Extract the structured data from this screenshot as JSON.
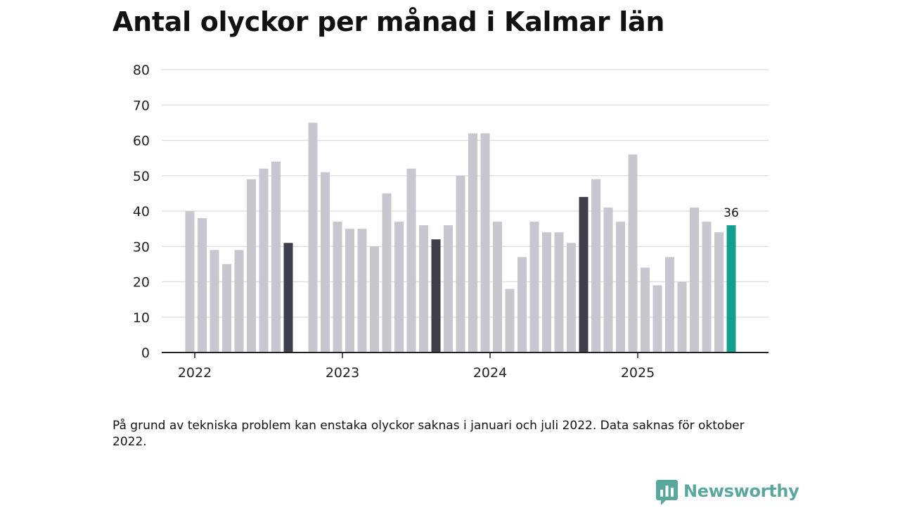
{
  "title": "Antal olyckor per månad i Kalmar län",
  "footnote": "På grund av tekniska problem kan enstaka olyckor saknas i januari och juli 2022. Data saknas för oktober 2022.",
  "brand": {
    "name": "Newsworthy",
    "icon": "newsworthy-logo-icon",
    "color": "#5aa89d"
  },
  "colors": {
    "bar": "#c8c7cf",
    "highlight": "#3f3e4b",
    "latest": "#139f8f",
    "grid": "#dcdcdc",
    "axis": "#222222"
  },
  "chart_data": {
    "type": "bar",
    "title": "Antal olyckor per månad i Kalmar län",
    "xlabel": "",
    "ylabel": "",
    "ylim": [
      0,
      80
    ],
    "yticks": [
      0,
      10,
      20,
      30,
      40,
      50,
      60,
      70,
      80
    ],
    "grid": true,
    "categories": [
      "2022-01",
      "2022-02",
      "2022-03",
      "2022-04",
      "2022-05",
      "2022-06",
      "2022-07",
      "2022-08",
      "2022-09",
      "2022-10",
      "2022-11",
      "2022-12",
      "2023-01",
      "2023-02",
      "2023-03",
      "2023-04",
      "2023-05",
      "2023-06",
      "2023-07",
      "2023-08",
      "2023-09",
      "2023-10",
      "2023-11",
      "2023-12",
      "2024-01",
      "2024-02",
      "2024-03",
      "2024-04",
      "2024-05",
      "2024-06",
      "2024-07",
      "2024-08",
      "2024-09",
      "2024-10",
      "2024-11",
      "2024-12",
      "2025-01",
      "2025-02",
      "2025-03",
      "2025-04",
      "2025-05",
      "2025-06",
      "2025-07",
      "2025-08",
      "2025-09"
    ],
    "values": [
      40,
      38,
      29,
      25,
      29,
      49,
      52,
      54,
      31,
      null,
      65,
      51,
      37,
      35,
      35,
      30,
      45,
      37,
      52,
      36,
      32,
      36,
      50,
      62,
      62,
      37,
      18,
      27,
      37,
      34,
      34,
      31,
      44,
      49,
      41,
      37,
      56,
      24,
      19,
      27,
      20,
      41,
      37,
      34,
      36
    ],
    "highlighted": [
      "2022-09",
      "2023-09",
      "2024-09"
    ],
    "latest": "2025-09",
    "x_tick_labels": [
      {
        "label": "2022",
        "category": "2022-01"
      },
      {
        "label": "2023",
        "category": "2023-01"
      },
      {
        "label": "2024",
        "category": "2024-01"
      },
      {
        "label": "2025",
        "category": "2025-01"
      }
    ],
    "annotations": [
      {
        "category": "2025-09",
        "text": "36"
      }
    ]
  }
}
